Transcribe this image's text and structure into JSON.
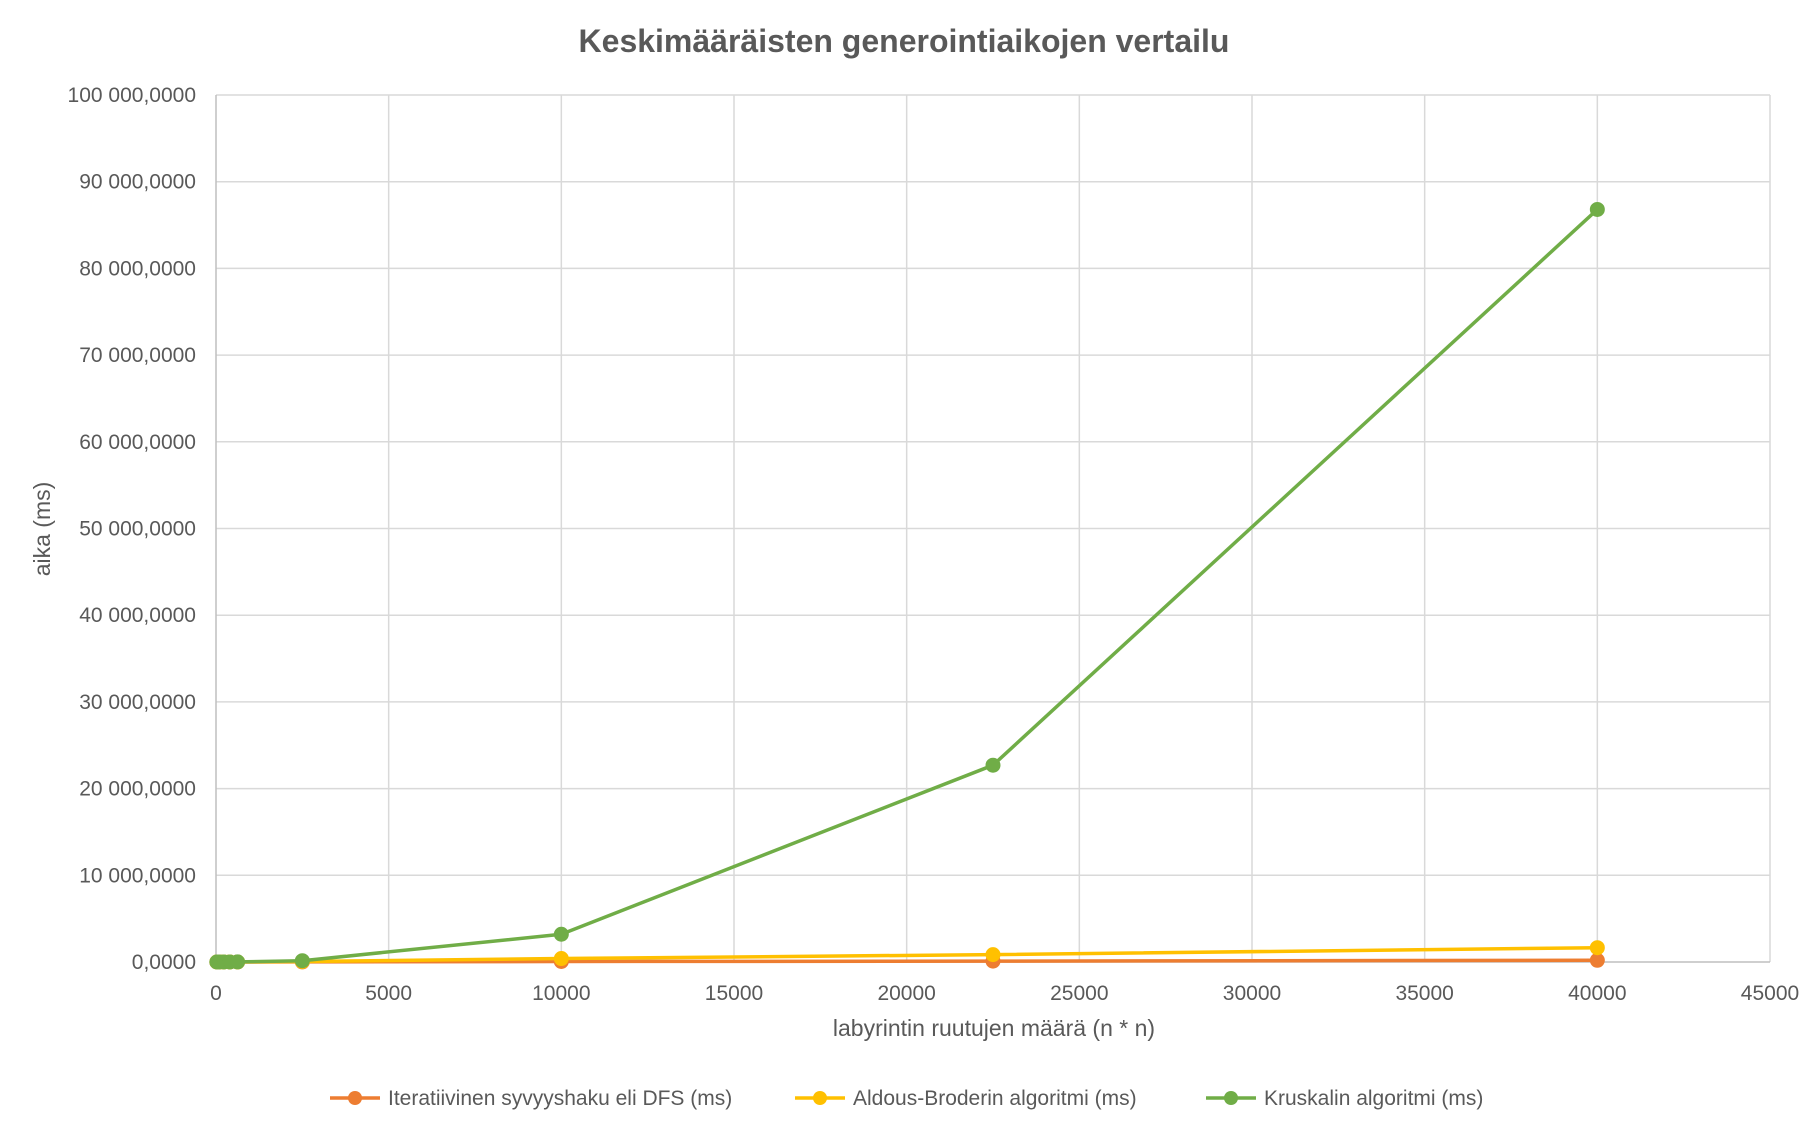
{
  "chart_data": {
    "type": "line",
    "title": "Keskimääräisten generointiaikojen vertailu",
    "xlabel": "labyrintin ruutujen määrä (n * n)",
    "ylabel": "aika (ms)",
    "xlim": [
      0,
      45000
    ],
    "ylim": [
      0,
      100000000
    ],
    "x_ticks": [
      0,
      5000,
      10000,
      15000,
      20000,
      25000,
      30000,
      35000,
      40000,
      45000
    ],
    "x_tick_labels": [
      "0",
      "5000",
      "10000",
      "15000",
      "20000",
      "25000",
      "30000",
      "35000",
      "40000",
      "45000"
    ],
    "y_ticks": [
      0,
      10000000,
      20000000,
      30000000,
      40000000,
      50000000,
      60000000,
      70000000,
      80000000,
      90000000,
      100000000
    ],
    "y_tick_labels": [
      "0,0000",
      "10 000,0000",
      "20 000,0000",
      "30 000,0000",
      "40 000,0000",
      "50 000,0000",
      "60 000,0000",
      "70 000,0000",
      "80 000,0000",
      "90 000,0000",
      "100 000,0000"
    ],
    "grid": true,
    "legend_position": "bottom",
    "x": [
      25,
      100,
      225,
      400,
      625,
      2500,
      10000,
      22500,
      40000
    ],
    "series": [
      {
        "name": "Iteratiivinen syvyyshaku eli DFS (ms)",
        "color": "#ED7D31",
        "values": [
          0,
          0,
          0,
          0,
          0,
          10000,
          60000,
          100000,
          200000
        ]
      },
      {
        "name": "Aldous-Broderin algoritmi  (ms)",
        "color": "#FFC000",
        "values": [
          0,
          0,
          0,
          0,
          5000,
          60000,
          400000,
          850000,
          1650000
        ]
      },
      {
        "name": "Kruskalin algoritmi  (ms)",
        "color": "#70AD47",
        "values": [
          0,
          0,
          0,
          0,
          10000,
          150000,
          3200000,
          22700000,
          86800000
        ]
      }
    ]
  }
}
